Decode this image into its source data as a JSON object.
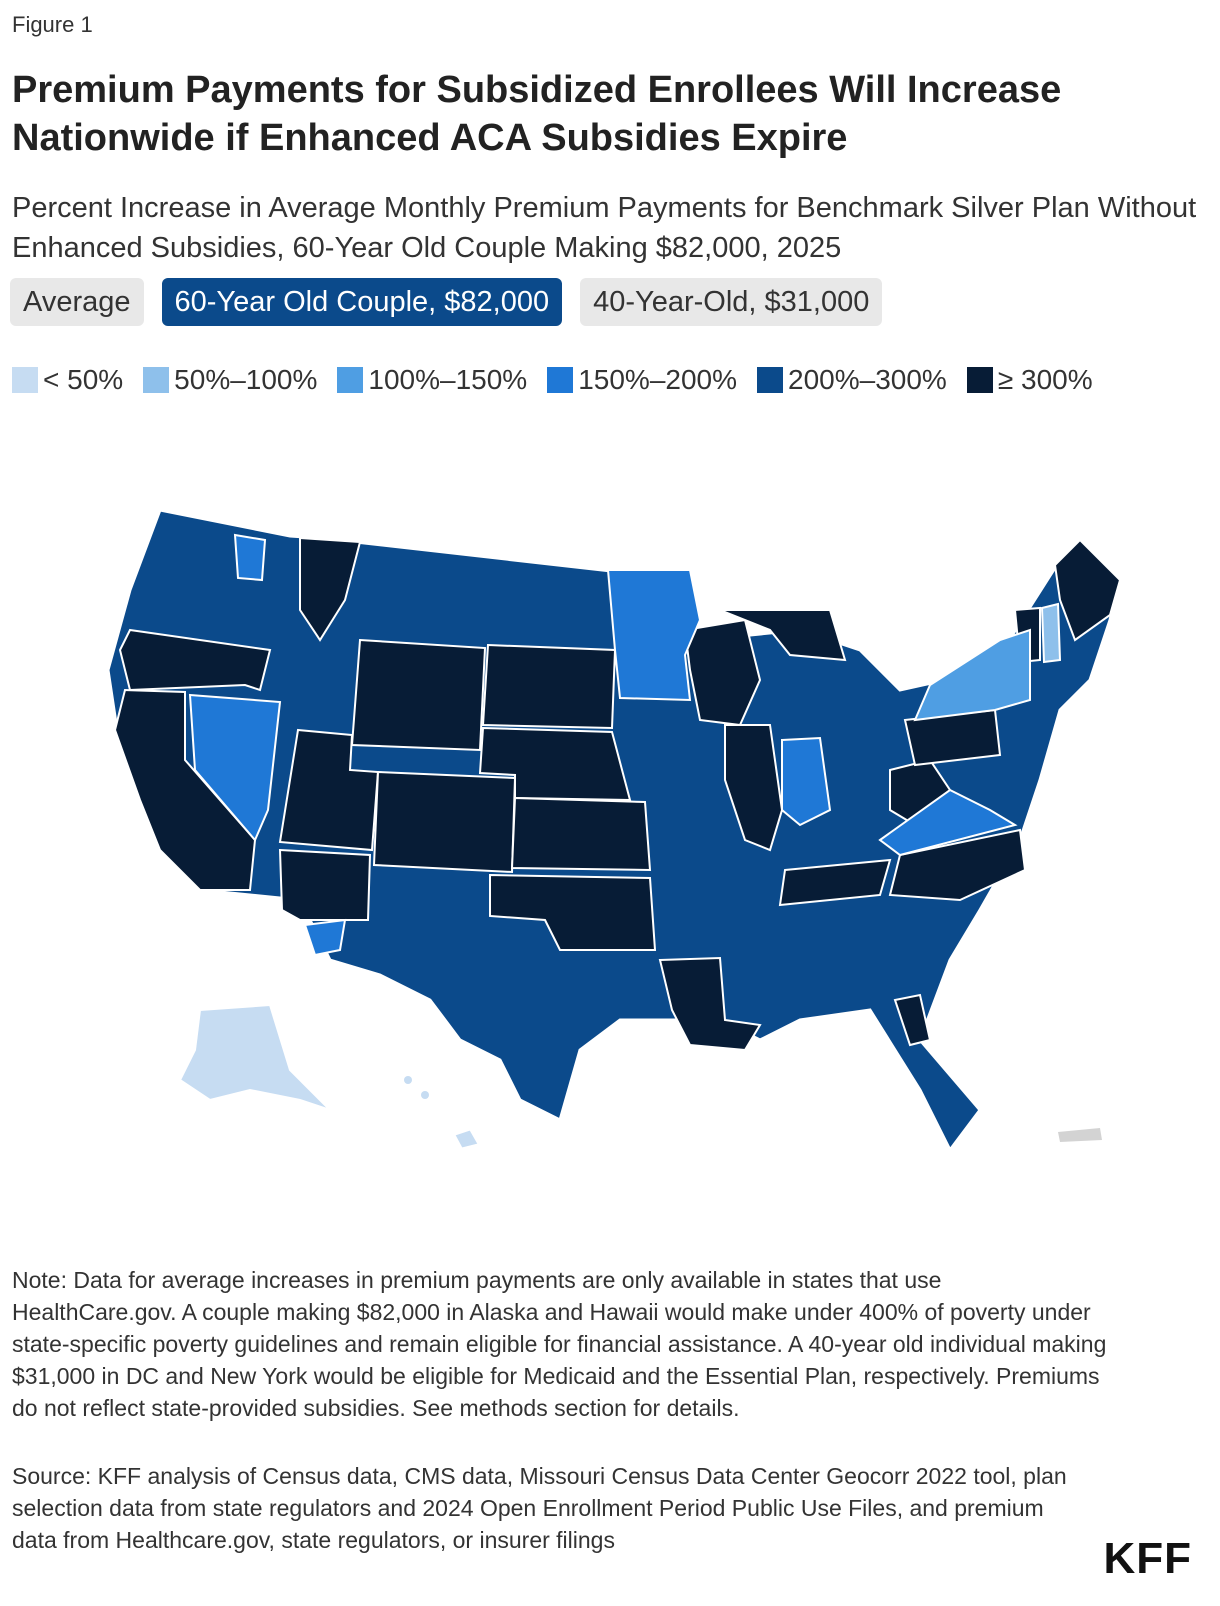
{
  "figure_label": "Figure 1",
  "title": "Premium Payments for Subsidized Enrollees Will Increase Nationwide if Enhanced ACA Subsidies Expire",
  "subtitle": "Percent Increase in Average Monthly Premium Payments for Benchmark Silver Plan Without Enhanced Subsidies, 60-Year Old Couple Making $82,000, 2025",
  "tabs": [
    {
      "label": "Average",
      "active": false
    },
    {
      "label": "60-Year Old Couple, $82,000",
      "active": true
    },
    {
      "label": "40-Year-Old, $31,000",
      "active": false
    }
  ],
  "legend": [
    {
      "label": "< 50%",
      "color": "#c6dcf2"
    },
    {
      "label": "50%–100%",
      "color": "#8ec0eb"
    },
    {
      "label": "100%–150%",
      "color": "#4f9ee3"
    },
    {
      "label": "150%–200%",
      "color": "#1f78d6"
    },
    {
      "label": "200%–300%",
      "color": "#0b4a8b"
    },
    {
      "label": "≥ 300%",
      "color": "#071c36"
    }
  ],
  "colors": {
    "border": "#ffffff",
    "no_data": "#d3d3d3"
  },
  "note": "Note: Data for average increases in premium payments are only available in states that use HealthCare.gov. A couple making $82,000 in Alaska and Hawaii would make under 400% of poverty under state-specific poverty guidelines and remain eligible for financial assistance. A 40-year old individual making $31,000 in DC and New York would be eligible for Medicaid and the Essential Plan, respectively. Premiums do not reflect state-provided subsidies. See methods section for details.",
  "source": "Source: KFF analysis of Census data, CMS data, Missouri Census Data Center Geocorr 2022 tool, plan selection data from state regulators and 2024 Open Enrollment Period Public Use Files, and premium data from Healthcare.gov, state regulators, or insurer filings",
  "logo": "KFF"
}
